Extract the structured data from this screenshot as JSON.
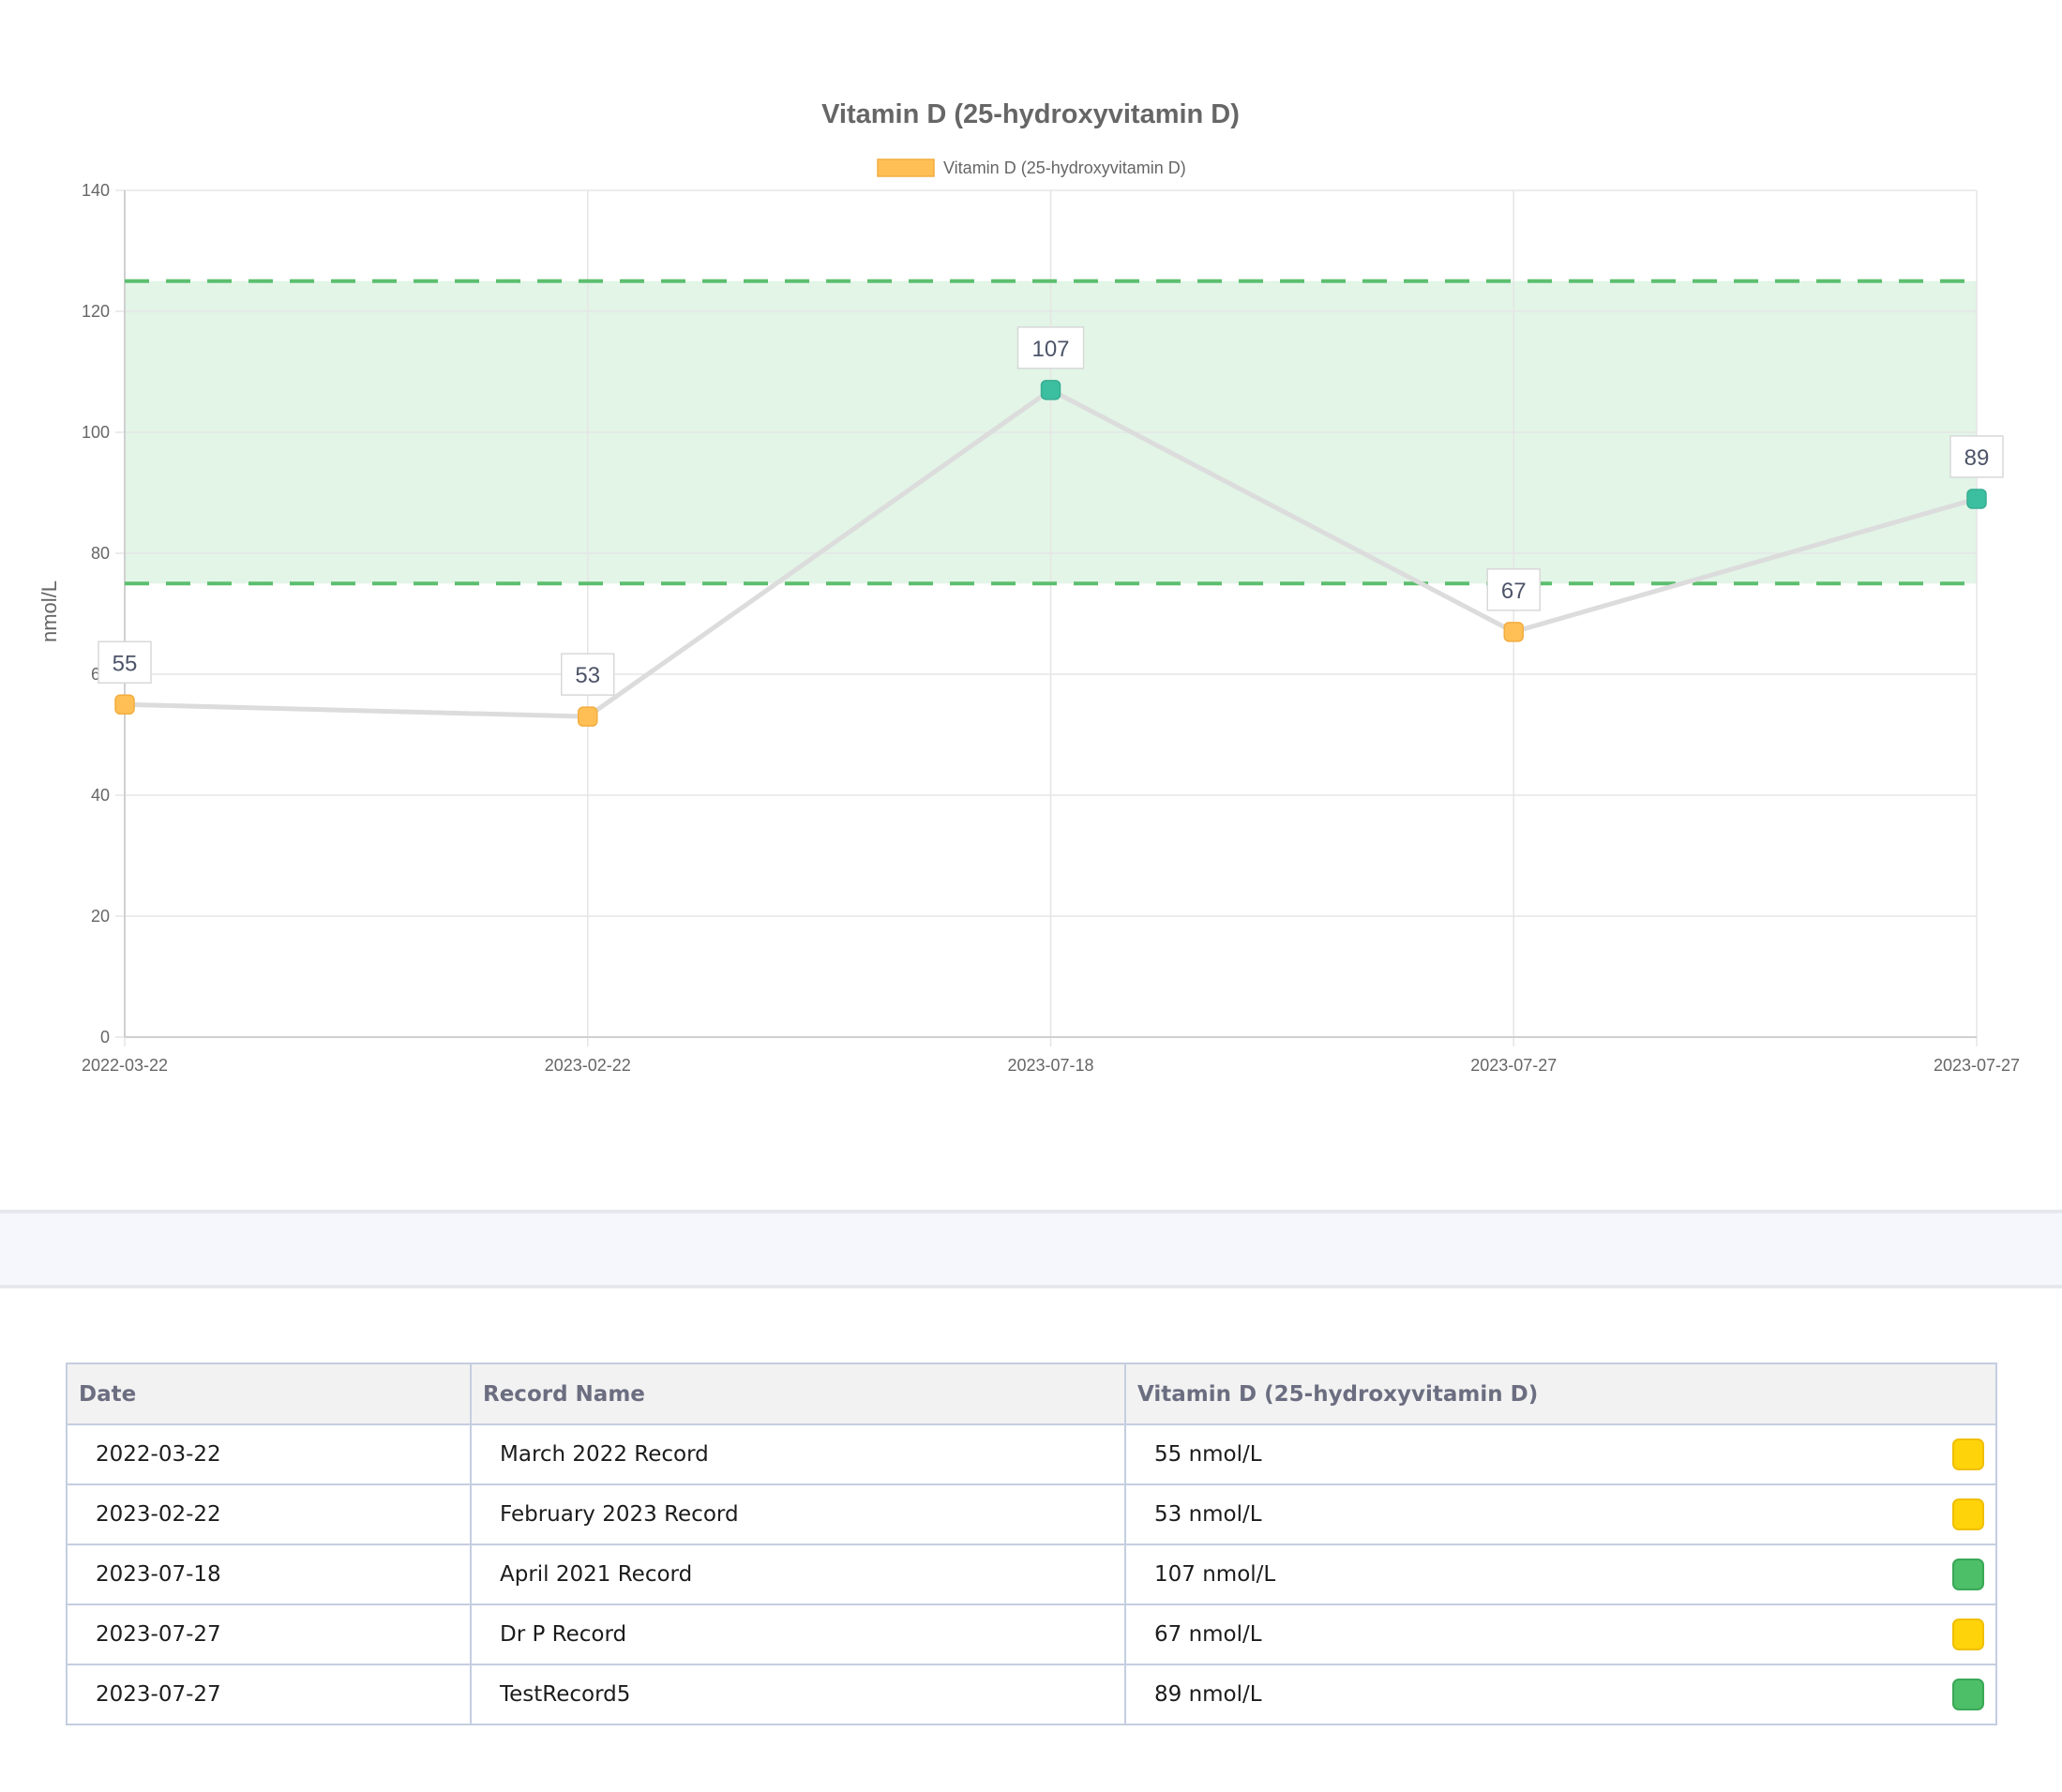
{
  "chart_data": {
    "type": "line",
    "title": "Vitamin D (25-hydroxyvitamin D)",
    "legend": {
      "label": "Vitamin D (25-hydroxyvitamin D)",
      "color": "#ffbf55",
      "placement": "top"
    },
    "ylabel": "nmol/L",
    "xlabel": "",
    "ylim": [
      0,
      140
    ],
    "yticks": [
      0,
      20,
      40,
      60,
      80,
      100,
      120,
      140
    ],
    "grid": true,
    "x": [
      "2022-03-22",
      "2023-02-22",
      "2023-07-18",
      "2023-07-27",
      "2023-07-27"
    ],
    "values": [
      55,
      53,
      107,
      67,
      89
    ],
    "point_status": [
      "out",
      "out",
      "in",
      "out",
      "in"
    ],
    "reference_range": {
      "low": 75,
      "high": 125
    },
    "colors": {
      "in_range_point": "#3cbfa0",
      "out_range_point": "#ffbf55",
      "line": "#dcdcdc",
      "range_fill": "#e2f5e7",
      "range_line": "#5cbf6e"
    }
  },
  "table": {
    "headers": [
      "Date",
      "Record Name",
      "Vitamin D (25-hydroxyvitamin D)"
    ],
    "rows": [
      {
        "date": "2022-03-22",
        "name": "March 2022 Record",
        "value": "55 nmol/L",
        "status": "out"
      },
      {
        "date": "2023-02-22",
        "name": "February 2023 Record",
        "value": "53 nmol/L",
        "status": "out"
      },
      {
        "date": "2023-07-18",
        "name": "April 2021 Record",
        "value": "107 nmol/L",
        "status": "in"
      },
      {
        "date": "2023-07-27",
        "name": "Dr P Record",
        "value": "67 nmol/L",
        "status": "out"
      },
      {
        "date": "2023-07-27",
        "name": "TestRecord5",
        "value": "89 nmol/L",
        "status": "in"
      }
    ],
    "status_colors": {
      "in": "#4cbf68",
      "out": "#ffd30a"
    }
  }
}
